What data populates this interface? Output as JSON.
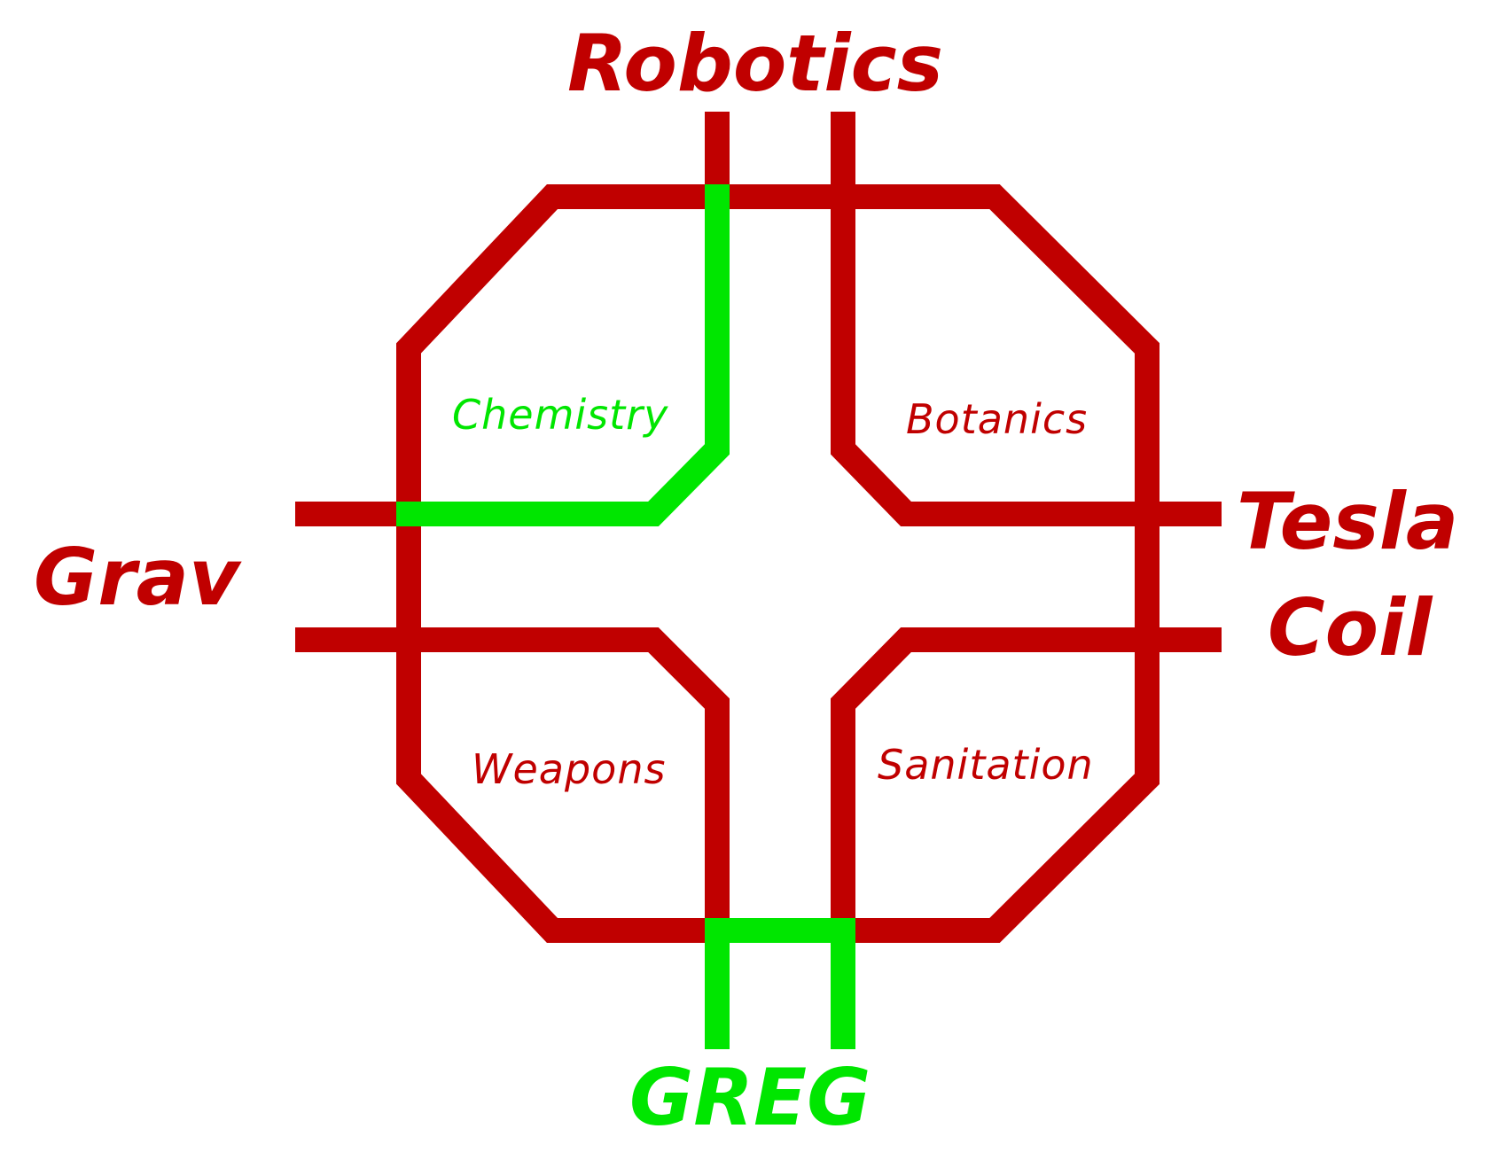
{
  "colors": {
    "background": "#ffffff",
    "red": "#c00000",
    "green": "#00e600"
  },
  "labels": {
    "robotics": "Robotics",
    "grav": "Grav",
    "tesla": "Tesla",
    "coil": "Coil",
    "greg": "GREG",
    "chemistry": "Chemistry",
    "botanics": "Botanics",
    "weapons": "Weapons",
    "sanitation": "Sanitation"
  },
  "highlighted_route": [
    "Chemistry",
    "GREG"
  ]
}
